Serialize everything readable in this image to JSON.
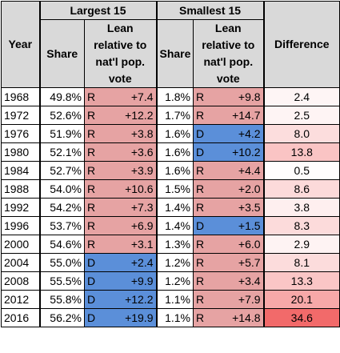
{
  "headers": {
    "year": "Year",
    "largest": "Largest 15",
    "smallest": "Smallest 15",
    "share": "Share",
    "lean": [
      "Lean",
      "relative to",
      "nat'l pop.",
      "vote"
    ],
    "difference": "Difference"
  },
  "colors": {
    "header_bg": "#d9d9d9",
    "r_cell": "#e6a3a3",
    "d_cell": "#5b8fd9",
    "diff_scale_low": "#ffffff",
    "diff_scale_high": "#f26a6a"
  },
  "rows": [
    {
      "year": "1968",
      "ls": "49.8%",
      "lp": "R",
      "lv": "+7.4",
      "ss": "1.8%",
      "sp": "R",
      "sv": "+9.8",
      "diff": "2.4",
      "d": 2.4
    },
    {
      "year": "1972",
      "ls": "52.6%",
      "lp": "R",
      "lv": "+12.2",
      "ss": "1.7%",
      "sp": "R",
      "sv": "+14.7",
      "diff": "2.5",
      "d": 2.5
    },
    {
      "year": "1976",
      "ls": "51.9%",
      "lp": "R",
      "lv": "+3.8",
      "ss": "1.6%",
      "sp": "D",
      "sv": "+4.2",
      "diff": "8.0",
      "d": 8.0
    },
    {
      "year": "1980",
      "ls": "52.1%",
      "lp": "R",
      "lv": "+3.6",
      "ss": "1.6%",
      "sp": "D",
      "sv": "+10.2",
      "diff": "13.8",
      "d": 13.8
    },
    {
      "year": "1984",
      "ls": "52.7%",
      "lp": "R",
      "lv": "+3.9",
      "ss": "1.6%",
      "sp": "R",
      "sv": "+4.4",
      "diff": "0.5",
      "d": 0.5
    },
    {
      "year": "1988",
      "ls": "54.0%",
      "lp": "R",
      "lv": "+10.6",
      "ss": "1.5%",
      "sp": "R",
      "sv": "+2.0",
      "diff": "8.6",
      "d": 8.6
    },
    {
      "year": "1992",
      "ls": "54.2%",
      "lp": "R",
      "lv": "+7.3",
      "ss": "1.4%",
      "sp": "R",
      "sv": "+3.5",
      "diff": "3.8",
      "d": 3.8
    },
    {
      "year": "1996",
      "ls": "53.7%",
      "lp": "R",
      "lv": "+6.9",
      "ss": "1.4%",
      "sp": "D",
      "sv": "+1.5",
      "diff": "8.3",
      "d": 8.3
    },
    {
      "year": "2000",
      "ls": "54.6%",
      "lp": "R",
      "lv": "+3.1",
      "ss": "1.3%",
      "sp": "R",
      "sv": "+6.0",
      "diff": "2.9",
      "d": 2.9
    },
    {
      "year": "2004",
      "ls": "55.0%",
      "lp": "D",
      "lv": "+2.4",
      "ss": "1.2%",
      "sp": "R",
      "sv": "+5.7",
      "diff": "8.1",
      "d": 8.1
    },
    {
      "year": "2008",
      "ls": "55.5%",
      "lp": "D",
      "lv": "+9.9",
      "ss": "1.2%",
      "sp": "R",
      "sv": "+3.4",
      "diff": "13.3",
      "d": 13.3
    },
    {
      "year": "2012",
      "ls": "55.8%",
      "lp": "D",
      "lv": "+12.2",
      "ss": "1.1%",
      "sp": "R",
      "sv": "+7.9",
      "diff": "20.1",
      "d": 20.1
    },
    {
      "year": "2016",
      "ls": "56.2%",
      "lp": "D",
      "lv": "+19.9",
      "ss": "1.1%",
      "sp": "R",
      "sv": "+14.8",
      "diff": "34.6",
      "d": 34.6
    }
  ]
}
